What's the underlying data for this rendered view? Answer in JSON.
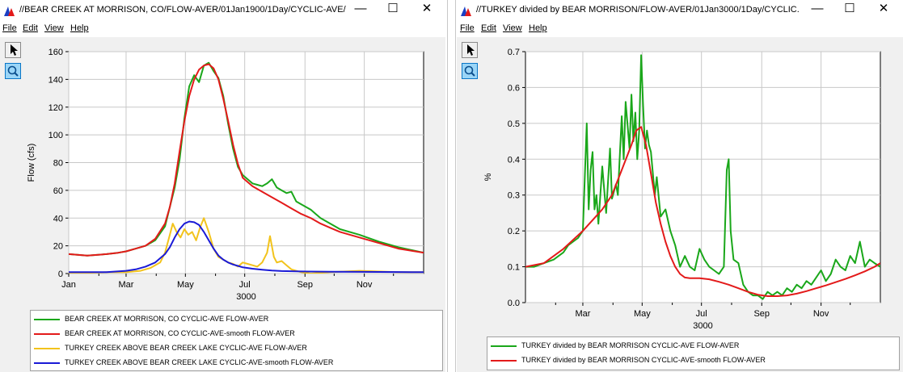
{
  "windows": [
    {
      "title": "//BEAR CREEK AT MORRISON, CO/FLOW-AVER/01Jan1900/1Day/CYCLIC-AVE/",
      "menus": [
        "File",
        "Edit",
        "View",
        "Help"
      ],
      "minimize": "—",
      "maximize": "☐",
      "close": "✕",
      "legend": [
        {
          "label": "BEAR CREEK AT MORRISON, CO CYCLIC-AVE FLOW-AVER",
          "color": "#1aa71a"
        },
        {
          "label": "BEAR CREEK AT MORRISON, CO CYCLIC-AVE-smooth FLOW-AVER",
          "color": "#e31a1a"
        },
        {
          "label": "TURKEY CREEK ABOVE BEAR CREEK LAKE CYCLIC-AVE FLOW-AVER",
          "color": "#f2c31c"
        },
        {
          "label": "TURKEY CREEK ABOVE BEAR CREEK LAKE CYCLIC-AVE-smooth FLOW-AVER",
          "color": "#1a1ad6"
        }
      ]
    },
    {
      "title": "//TURKEY divided by BEAR MORRISON/FLOW-AVER/01Jan3000/1Day/CYCLIC...",
      "menus": [
        "File",
        "Edit",
        "View",
        "Help"
      ],
      "minimize": "—",
      "maximize": "☐",
      "close": "✕",
      "legend": [
        {
          "label": "TURKEY divided by BEAR MORRISON CYCLIC-AVE FLOW-AVER",
          "color": "#1aa71a"
        },
        {
          "label": "TURKEY divided by BEAR MORRISON CYCLIC-AVE-smooth FLOW-AVER",
          "color": "#e31a1a"
        }
      ]
    }
  ],
  "tools": [
    {
      "name": "pointer-icon",
      "color": "#000000"
    },
    {
      "name": "zoom-icon",
      "color": "#0a76c7"
    }
  ],
  "chart_data": [
    {
      "type": "line",
      "title": "",
      "xlabel": "3000",
      "ylabel": "Flow (cfs)",
      "xlim": [
        1,
        366
      ],
      "ylim": [
        0,
        160
      ],
      "yticks": [
        0,
        20,
        40,
        60,
        80,
        100,
        120,
        140,
        160
      ],
      "xticks": [
        {
          "day": 1,
          "label": "Jan"
        },
        {
          "day": 60,
          "label": "Mar"
        },
        {
          "day": 121,
          "label": "May"
        },
        {
          "day": 182,
          "label": "Jul"
        },
        {
          "day": 244,
          "label": "Sep"
        },
        {
          "day": 305,
          "label": "Nov"
        }
      ],
      "grid": true,
      "legend_position": "bottom",
      "series": [
        {
          "name": "BEAR CREEK AT MORRISON, CO CYCLIC-AVE FLOW-AVER",
          "color": "#1aa71a",
          "x": [
            1,
            20,
            40,
            52,
            60,
            70,
            80,
            90,
            100,
            105,
            110,
            115,
            120,
            125,
            130,
            135,
            140,
            145,
            150,
            155,
            160,
            165,
            170,
            175,
            180,
            185,
            190,
            195,
            200,
            205,
            210,
            215,
            220,
            225,
            230,
            235,
            240,
            245,
            250,
            255,
            260,
            270,
            280,
            300,
            320,
            340,
            366
          ],
          "y": [
            14,
            13,
            14,
            15,
            16,
            18,
            20,
            24,
            34,
            48,
            62,
            82,
            112,
            135,
            143,
            138,
            150,
            152,
            146,
            141,
            128,
            108,
            90,
            77,
            71,
            68,
            65,
            64,
            63,
            65,
            68,
            62,
            60,
            58,
            59,
            52,
            50,
            48,
            46,
            43,
            40,
            36,
            32,
            28,
            23,
            19,
            15
          ]
        },
        {
          "name": "BEAR CREEK AT MORRISON, CO CYCLIC-AVE-smooth FLOW-AVER",
          "color": "#e31a1a",
          "x": [
            1,
            20,
            40,
            52,
            60,
            70,
            80,
            90,
            100,
            105,
            110,
            115,
            120,
            125,
            130,
            135,
            140,
            145,
            150,
            155,
            160,
            165,
            170,
            175,
            180,
            190,
            200,
            210,
            220,
            230,
            240,
            250,
            260,
            270,
            280,
            300,
            320,
            340,
            366
          ],
          "y": [
            14,
            13,
            14,
            15,
            16,
            18,
            20,
            25,
            36,
            48,
            65,
            88,
            110,
            128,
            140,
            147,
            150,
            151,
            148,
            140,
            126,
            110,
            93,
            79,
            69,
            63,
            59,
            55,
            51,
            47,
            43,
            40,
            36,
            33,
            30,
            26,
            22,
            18,
            15
          ]
        },
        {
          "name": "TURKEY CREEK ABOVE BEAR CREEK LAKE CYCLIC-AVE FLOW-AVER",
          "color": "#f2c31c",
          "x": [
            1,
            40,
            60,
            75,
            85,
            95,
            100,
            105,
            108,
            112,
            116,
            120,
            124,
            128,
            132,
            136,
            140,
            145,
            150,
            155,
            160,
            165,
            170,
            175,
            180,
            185,
            190,
            195,
            200,
            205,
            208,
            212,
            215,
            220,
            225,
            230,
            240,
            250,
            270,
            300,
            340,
            366
          ],
          "y": [
            0,
            1,
            1,
            2,
            4,
            8,
            15,
            28,
            36,
            30,
            26,
            32,
            28,
            30,
            24,
            33,
            40,
            30,
            18,
            12,
            10,
            8,
            7,
            5,
            8,
            7,
            6,
            5,
            8,
            15,
            27,
            12,
            8,
            9,
            6,
            3,
            1,
            0,
            1,
            2,
            1,
            1
          ]
        },
        {
          "name": "TURKEY CREEK ABOVE BEAR CREEK LAKE CYCLIC-AVE-smooth FLOW-AVER",
          "color": "#1a1ad6",
          "x": [
            1,
            40,
            60,
            70,
            80,
            90,
            100,
            105,
            110,
            115,
            120,
            125,
            130,
            135,
            140,
            145,
            150,
            155,
            160,
            165,
            170,
            175,
            180,
            190,
            200,
            210,
            220,
            240,
            270,
            300,
            340,
            366
          ],
          "y": [
            1,
            1,
            2,
            3,
            5,
            8,
            14,
            19,
            26,
            32,
            36,
            37.5,
            37,
            35,
            30,
            24,
            18,
            13,
            10,
            8,
            6.5,
            5.5,
            4.5,
            3.5,
            2.8,
            2.2,
            1.8,
            1.5,
            1.3,
            1.2,
            1.1,
            1
          ]
        }
      ]
    },
    {
      "type": "line",
      "title": "",
      "xlabel": "3000",
      "ylabel": "%",
      "xlim": [
        1,
        366
      ],
      "ylim": [
        0,
        0.7
      ],
      "yticks": [
        0.0,
        0.1,
        0.2,
        0.3,
        0.4,
        0.5,
        0.6,
        0.7
      ],
      "ytick_labels": [
        "0.0",
        "0.1",
        "0.2",
        "0.3",
        "0.4",
        "0.5",
        "0.6",
        "0.7"
      ],
      "xticks": [
        {
          "day": 60,
          "label": "Mar"
        },
        {
          "day": 121,
          "label": "May"
        },
        {
          "day": 182,
          "label": "Jul"
        },
        {
          "day": 244,
          "label": "Sep"
        },
        {
          "day": 305,
          "label": "Nov"
        }
      ],
      "grid": true,
      "legend_position": "bottom",
      "series": [
        {
          "name": "TURKEY divided by BEAR MORRISON CYCLIC-AVE FLOW-AVER",
          "color": "#1aa71a",
          "x": [
            1,
            10,
            20,
            30,
            40,
            45,
            50,
            55,
            60,
            62,
            64,
            66,
            68,
            70,
            72,
            74,
            76,
            80,
            84,
            88,
            90,
            94,
            96,
            100,
            102,
            104,
            108,
            110,
            112,
            114,
            116,
            118,
            120,
            122,
            124,
            126,
            128,
            130,
            132,
            134,
            136,
            140,
            145,
            150,
            155,
            160,
            165,
            170,
            175,
            180,
            185,
            190,
            195,
            200,
            205,
            208,
            210,
            212,
            215,
            220,
            225,
            230,
            235,
            240,
            245,
            250,
            255,
            260,
            265,
            270,
            275,
            280,
            285,
            290,
            295,
            300,
            305,
            310,
            315,
            320,
            325,
            330,
            335,
            340,
            345,
            350,
            355,
            360,
            366
          ],
          "y": [
            0.1,
            0.1,
            0.11,
            0.12,
            0.14,
            0.16,
            0.17,
            0.18,
            0.2,
            0.35,
            0.5,
            0.26,
            0.37,
            0.42,
            0.26,
            0.3,
            0.22,
            0.38,
            0.25,
            0.43,
            0.29,
            0.33,
            0.3,
            0.52,
            0.4,
            0.56,
            0.43,
            0.58,
            0.45,
            0.53,
            0.4,
            0.48,
            0.69,
            0.55,
            0.43,
            0.48,
            0.44,
            0.42,
            0.36,
            0.3,
            0.35,
            0.24,
            0.26,
            0.2,
            0.16,
            0.1,
            0.13,
            0.1,
            0.09,
            0.15,
            0.12,
            0.1,
            0.09,
            0.08,
            0.1,
            0.37,
            0.4,
            0.2,
            0.12,
            0.11,
            0.05,
            0.03,
            0.02,
            0.02,
            0.01,
            0.03,
            0.02,
            0.03,
            0.02,
            0.04,
            0.03,
            0.05,
            0.04,
            0.06,
            0.05,
            0.07,
            0.09,
            0.06,
            0.08,
            0.12,
            0.1,
            0.09,
            0.13,
            0.11,
            0.17,
            0.1,
            0.12,
            0.11,
            0.1
          ]
        },
        {
          "name": "TURKEY divided by BEAR MORRISON CYCLIC-AVE-smooth FLOW-AVER",
          "color": "#e31a1a",
          "x": [
            1,
            20,
            40,
            60,
            70,
            80,
            90,
            100,
            110,
            115,
            120,
            125,
            130,
            135,
            140,
            145,
            150,
            155,
            160,
            165,
            170,
            180,
            190,
            200,
            210,
            220,
            230,
            240,
            250,
            260,
            270,
            280,
            290,
            300,
            310,
            320,
            330,
            340,
            350,
            360,
            366
          ],
          "y": [
            0.1,
            0.11,
            0.15,
            0.2,
            0.23,
            0.26,
            0.3,
            0.37,
            0.44,
            0.48,
            0.49,
            0.44,
            0.36,
            0.28,
            0.22,
            0.17,
            0.13,
            0.1,
            0.08,
            0.07,
            0.068,
            0.068,
            0.065,
            0.058,
            0.05,
            0.04,
            0.03,
            0.022,
            0.018,
            0.018,
            0.02,
            0.025,
            0.032,
            0.04,
            0.048,
            0.057,
            0.066,
            0.076,
            0.087,
            0.1,
            0.11
          ]
        }
      ]
    }
  ]
}
